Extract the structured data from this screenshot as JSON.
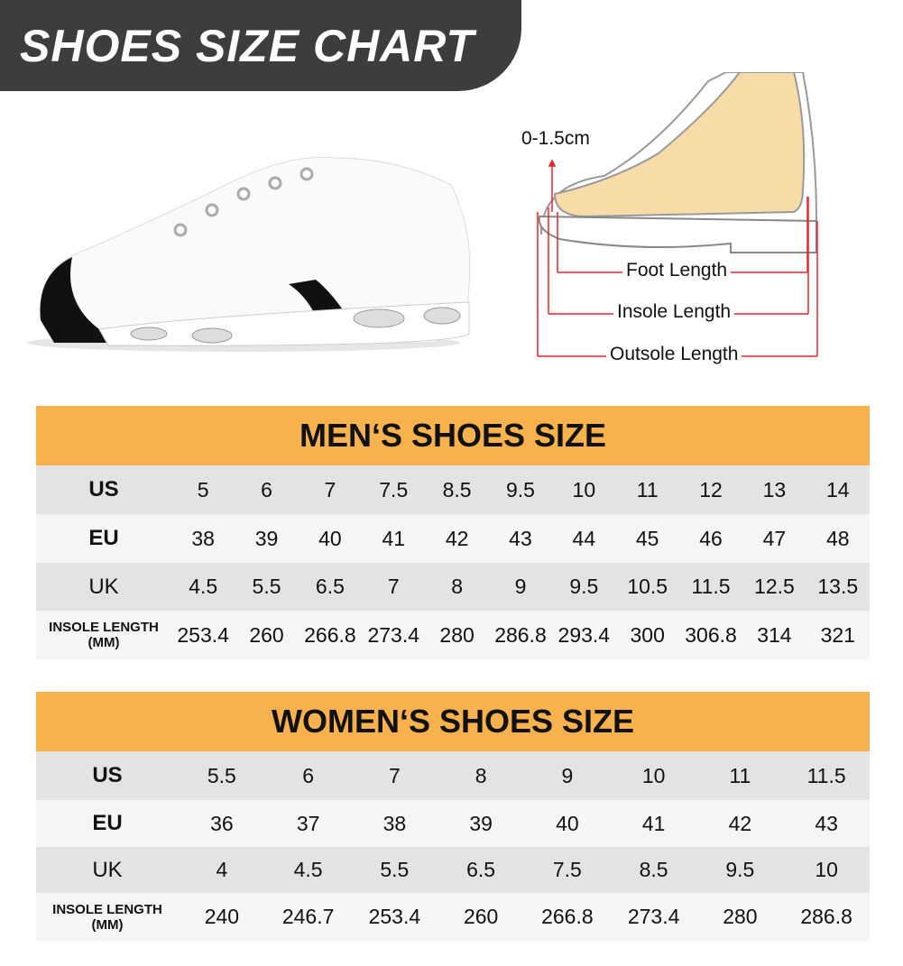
{
  "title": "SHOES SIZE CHART",
  "diagram": {
    "toe_gap": "0-1.5cm",
    "foot_length": "Foot Length",
    "insole_length": "Insole Length",
    "outsole_length": "Outsole Length"
  },
  "men": {
    "title": "MEN‘S SHOES SIZE",
    "rows": [
      {
        "label": "US",
        "values": [
          "5",
          "6",
          "7",
          "7.5",
          "8.5",
          "9.5",
          "10",
          "11",
          "12",
          "13",
          "14"
        ]
      },
      {
        "label": "EU",
        "values": [
          "38",
          "39",
          "40",
          "41",
          "42",
          "43",
          "44",
          "45",
          "46",
          "47",
          "48"
        ]
      },
      {
        "label": "UK",
        "values": [
          "4.5",
          "5.5",
          "6.5",
          "7",
          "8",
          "9",
          "9.5",
          "10.5",
          "11.5",
          "12.5",
          "13.5"
        ]
      },
      {
        "label": "INSOLE LENGTH (MM)",
        "values": [
          "253.4",
          "260",
          "266.8",
          "273.4",
          "280",
          "286.8",
          "293.4",
          "300",
          "306.8",
          "314",
          "321"
        ]
      }
    ]
  },
  "women": {
    "title": "WOMEN‘S SHOES SIZE",
    "rows": [
      {
        "label": "US",
        "values": [
          "5.5",
          "6",
          "7",
          "8",
          "9",
          "10",
          "11",
          "11.5"
        ]
      },
      {
        "label": "EU",
        "values": [
          "36",
          "37",
          "38",
          "39",
          "40",
          "41",
          "42",
          "43"
        ]
      },
      {
        "label": "UK",
        "values": [
          "4",
          "4.5",
          "5.5",
          "6.5",
          "7.5",
          "8.5",
          "9.5",
          "10"
        ]
      },
      {
        "label": "INSOLE LENGTH (MM)",
        "values": [
          "240",
          "246.7",
          "253.4",
          "260",
          "266.8",
          "273.4",
          "280",
          "286.8"
        ]
      }
    ]
  },
  "colors": {
    "banner": "#3d3d3d",
    "header": "#f7b24e",
    "arrow": "#e8242a",
    "foot": "#f8dca8"
  }
}
